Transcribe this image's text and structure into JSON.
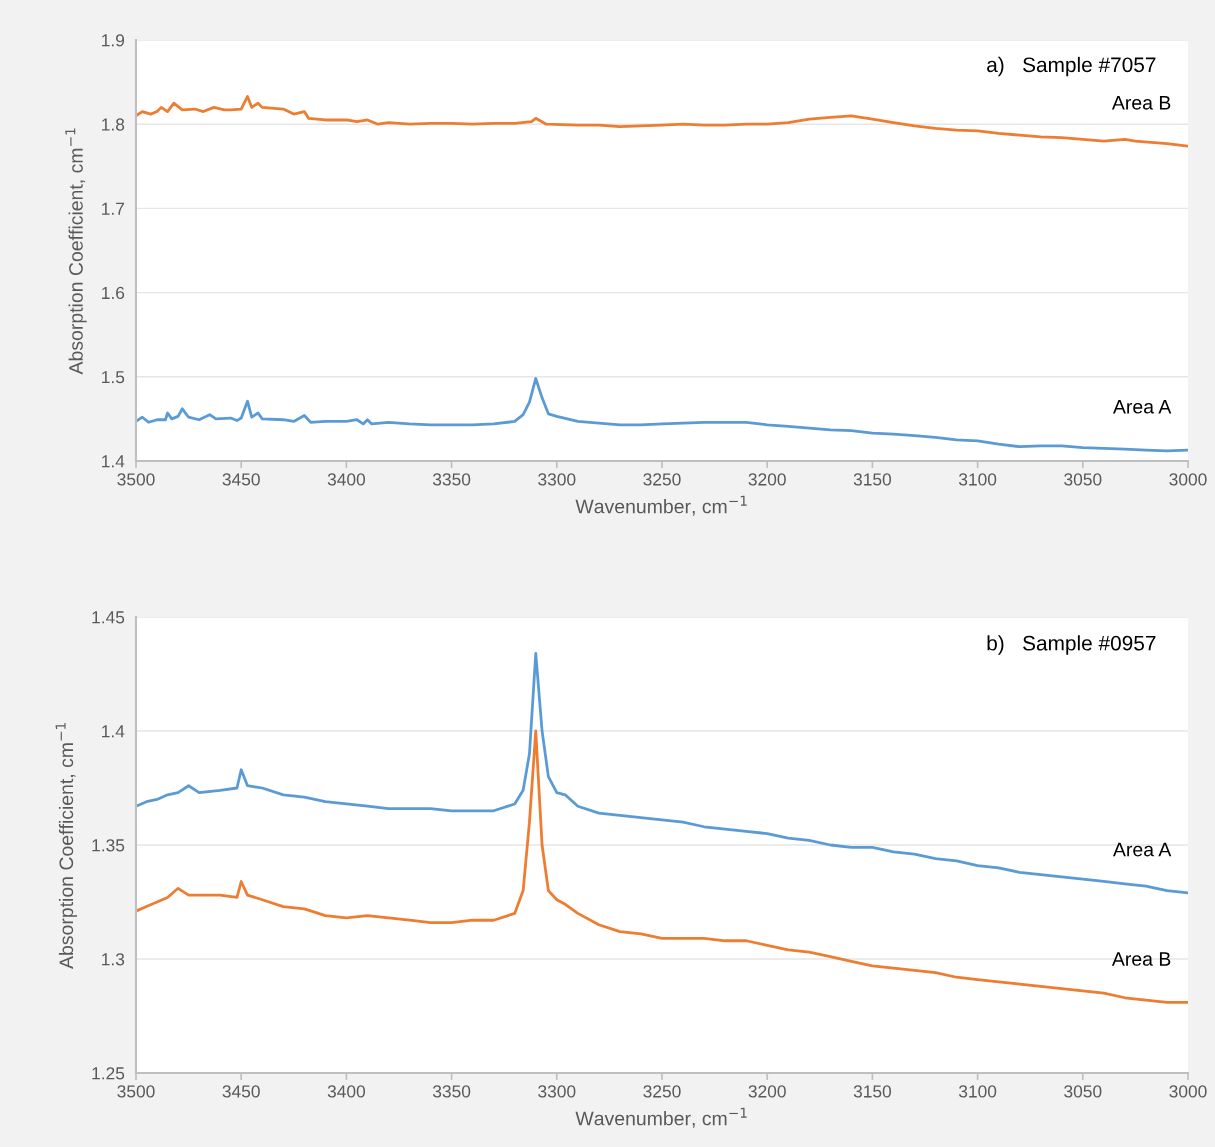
{
  "chart_data": [
    {
      "type": "line",
      "title": "a)   Sample #7057",
      "xlabel": "Wavenumber, cm$^{−1}$",
      "ylabel": "Absorption Coefficient, cm$^{−1}$",
      "xlim": [
        3500,
        3000
      ],
      "xticks": [
        3500,
        3450,
        3400,
        3350,
        3300,
        3250,
        3200,
        3150,
        3100,
        3050,
        3000
      ],
      "ylim": [
        1.4,
        1.9
      ],
      "yticks": [
        1.4,
        1.5,
        1.6,
        1.7,
        1.8,
        1.9
      ],
      "grid": "y",
      "legend": false,
      "series": [
        {
          "name": "Area B",
          "color": "#ed7d31",
          "x": [
            3500,
            3497,
            3493,
            3490,
            3488,
            3485,
            3482,
            3478,
            3472,
            3468,
            3463,
            3458,
            3455,
            3450,
            3447,
            3445,
            3442,
            3440,
            3430,
            3425,
            3420,
            3418,
            3410,
            3400,
            3395,
            3390,
            3385,
            3380,
            3370,
            3360,
            3350,
            3340,
            3330,
            3320,
            3312,
            3310,
            3305,
            3290,
            3280,
            3270,
            3260,
            3250,
            3240,
            3230,
            3220,
            3210,
            3200,
            3190,
            3180,
            3170,
            3160,
            3150,
            3140,
            3130,
            3120,
            3110,
            3100,
            3090,
            3080,
            3070,
            3060,
            3050,
            3040,
            3030,
            3025,
            3010,
            3000
          ],
          "values": [
            1.81,
            1.815,
            1.812,
            1.815,
            1.82,
            1.815,
            1.825,
            1.817,
            1.818,
            1.815,
            1.82,
            1.817,
            1.817,
            1.818,
            1.833,
            1.82,
            1.825,
            1.82,
            1.818,
            1.812,
            1.815,
            1.807,
            1.805,
            1.805,
            1.803,
            1.805,
            1.8,
            1.802,
            1.8,
            1.801,
            1.801,
            1.8,
            1.801,
            1.801,
            1.803,
            1.807,
            1.8,
            1.799,
            1.799,
            1.797,
            1.798,
            1.799,
            1.8,
            1.799,
            1.799,
            1.8,
            1.8,
            1.802,
            1.806,
            1.808,
            1.81,
            1.806,
            1.802,
            1.798,
            1.795,
            1.793,
            1.792,
            1.789,
            1.787,
            1.785,
            1.784,
            1.782,
            1.78,
            1.782,
            1.78,
            1.777,
            1.774
          ]
        },
        {
          "name": "Area A",
          "color": "#5b9bd5",
          "x": [
            3500,
            3497,
            3494,
            3490,
            3486,
            3485,
            3483,
            3480,
            3478,
            3475,
            3470,
            3465,
            3462,
            3455,
            3452,
            3450,
            3447,
            3445,
            3442,
            3440,
            3430,
            3425,
            3420,
            3417,
            3410,
            3400,
            3395,
            3392,
            3390,
            3388,
            3380,
            3370,
            3360,
            3350,
            3340,
            3330,
            3320,
            3316,
            3313,
            3310,
            3307,
            3304,
            3300,
            3290,
            3280,
            3270,
            3260,
            3250,
            3240,
            3230,
            3220,
            3210,
            3200,
            3190,
            3180,
            3170,
            3160,
            3150,
            3140,
            3130,
            3120,
            3110,
            3100,
            3090,
            3080,
            3070,
            3060,
            3050,
            3040,
            3030,
            3020,
            3010,
            3000
          ],
          "values": [
            1.447,
            1.452,
            1.446,
            1.449,
            1.449,
            1.457,
            1.45,
            1.453,
            1.462,
            1.452,
            1.449,
            1.455,
            1.45,
            1.451,
            1.448,
            1.451,
            1.471,
            1.452,
            1.457,
            1.45,
            1.449,
            1.447,
            1.454,
            1.446,
            1.447,
            1.447,
            1.449,
            1.444,
            1.449,
            1.444,
            1.446,
            1.444,
            1.443,
            1.443,
            1.443,
            1.444,
            1.447,
            1.455,
            1.47,
            1.498,
            1.475,
            1.456,
            1.453,
            1.447,
            1.445,
            1.443,
            1.443,
            1.444,
            1.445,
            1.446,
            1.446,
            1.446,
            1.443,
            1.441,
            1.439,
            1.437,
            1.436,
            1.433,
            1.432,
            1.43,
            1.428,
            1.425,
            1.424,
            1.42,
            1.417,
            1.418,
            1.418,
            1.416,
            1.415,
            1.414,
            1.413,
            1.412,
            1.413
          ]
        }
      ]
    },
    {
      "type": "line",
      "title": "b)   Sample #0957",
      "xlabel": "Wavenumber, cm$^{−1}$",
      "ylabel": "Absorption Coefficient, cm$^{−1}$",
      "xlim": [
        3500,
        3000
      ],
      "xticks": [
        3500,
        3450,
        3400,
        3350,
        3300,
        3250,
        3200,
        3150,
        3100,
        3050,
        3000
      ],
      "ylim": [
        1.25,
        1.45
      ],
      "yticks": [
        1.25,
        1.3,
        1.35,
        1.4,
        1.45
      ],
      "grid": "y",
      "legend": false,
      "series": [
        {
          "name": "Area A",
          "color": "#5b9bd5",
          "x": [
            3500,
            3495,
            3490,
            3485,
            3480,
            3475,
            3470,
            3460,
            3452,
            3450,
            3447,
            3440,
            3430,
            3420,
            3410,
            3400,
            3390,
            3380,
            3370,
            3360,
            3350,
            3340,
            3330,
            3320,
            3316,
            3313,
            3310,
            3307,
            3304,
            3300,
            3296,
            3290,
            3280,
            3270,
            3260,
            3250,
            3240,
            3230,
            3220,
            3210,
            3200,
            3190,
            3180,
            3170,
            3160,
            3150,
            3140,
            3130,
            3120,
            3110,
            3100,
            3090,
            3080,
            3070,
            3060,
            3050,
            3040,
            3030,
            3020,
            3010,
            3000
          ],
          "values": [
            1.367,
            1.369,
            1.37,
            1.372,
            1.373,
            1.376,
            1.373,
            1.374,
            1.375,
            1.383,
            1.376,
            1.375,
            1.372,
            1.371,
            1.369,
            1.368,
            1.367,
            1.366,
            1.366,
            1.366,
            1.365,
            1.365,
            1.365,
            1.368,
            1.374,
            1.39,
            1.434,
            1.4,
            1.38,
            1.373,
            1.372,
            1.367,
            1.364,
            1.363,
            1.362,
            1.361,
            1.36,
            1.358,
            1.357,
            1.356,
            1.355,
            1.353,
            1.352,
            1.35,
            1.349,
            1.349,
            1.347,
            1.346,
            1.344,
            1.343,
            1.341,
            1.34,
            1.338,
            1.337,
            1.336,
            1.335,
            1.334,
            1.333,
            1.332,
            1.33,
            1.329
          ]
        },
        {
          "name": "Area B",
          "color": "#ed7d31",
          "x": [
            3500,
            3495,
            3490,
            3485,
            3480,
            3475,
            3470,
            3460,
            3452,
            3450,
            3447,
            3440,
            3430,
            3420,
            3410,
            3400,
            3390,
            3380,
            3370,
            3360,
            3350,
            3340,
            3330,
            3320,
            3316,
            3313,
            3310,
            3307,
            3304,
            3300,
            3296,
            3290,
            3280,
            3270,
            3260,
            3250,
            3240,
            3230,
            3220,
            3210,
            3200,
            3190,
            3180,
            3170,
            3160,
            3150,
            3140,
            3130,
            3120,
            3110,
            3100,
            3090,
            3080,
            3070,
            3060,
            3050,
            3040,
            3030,
            3020,
            3010,
            3000
          ],
          "values": [
            1.321,
            1.323,
            1.325,
            1.327,
            1.331,
            1.328,
            1.328,
            1.328,
            1.327,
            1.334,
            1.328,
            1.326,
            1.323,
            1.322,
            1.319,
            1.318,
            1.319,
            1.318,
            1.317,
            1.316,
            1.316,
            1.317,
            1.317,
            1.32,
            1.33,
            1.36,
            1.4,
            1.35,
            1.33,
            1.326,
            1.324,
            1.32,
            1.315,
            1.312,
            1.311,
            1.309,
            1.309,
            1.309,
            1.308,
            1.308,
            1.306,
            1.304,
            1.303,
            1.301,
            1.299,
            1.297,
            1.296,
            1.295,
            1.294,
            1.292,
            1.291,
            1.29,
            1.289,
            1.288,
            1.287,
            1.286,
            1.285,
            1.283,
            1.282,
            1.281,
            1.281
          ]
        }
      ]
    }
  ]
}
